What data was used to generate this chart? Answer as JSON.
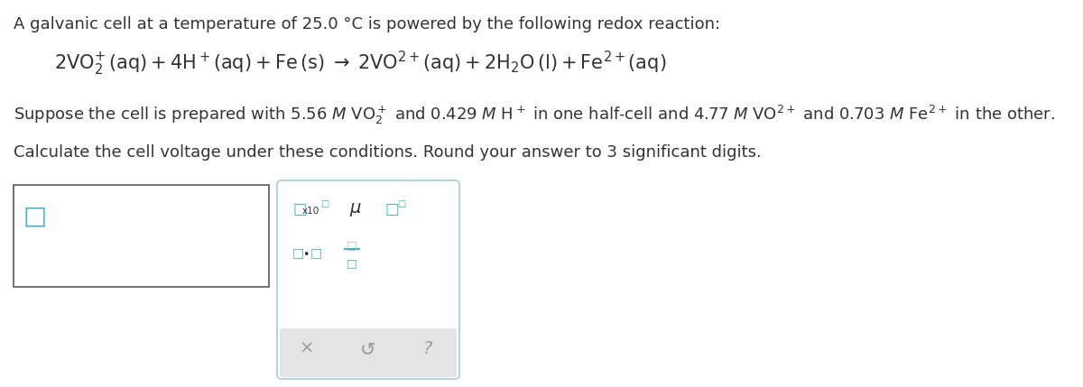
{
  "title": "A galvanic cell at a temperature of 25.0 °C is powered by the following redox reaction:",
  "calc_line": "Calculate the cell voltage under these conditions. Round your answer to 3 significant digits.",
  "bg_color": "#ffffff",
  "text_color": "#1a1a1a",
  "teal": "#3ab5c6",
  "dark": "#333333",
  "mid_gray": "#999999",
  "light_gray": "#e4e4e4",
  "widget_border": "#b0d8e0",
  "box_border": "#555555",
  "title_fontsize": 13,
  "body_fontsize": 13,
  "reaction_fontsize": 15
}
